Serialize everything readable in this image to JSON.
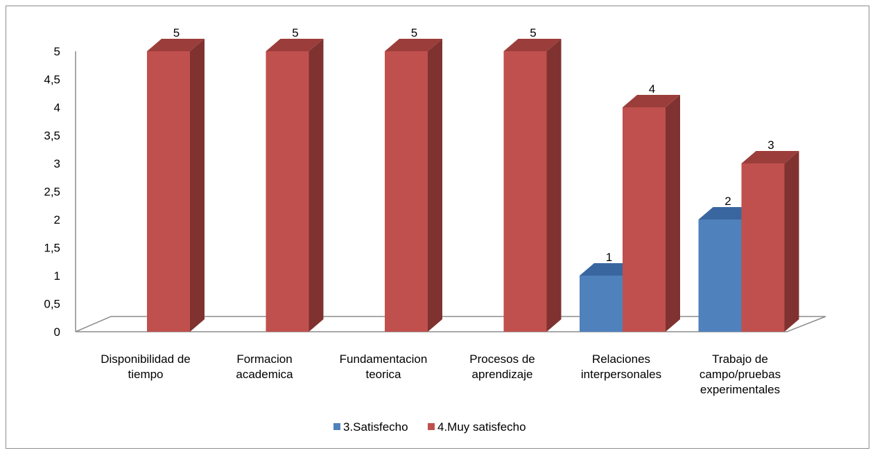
{
  "chart_data": {
    "type": "bar",
    "subtype": "3d-clustered-column",
    "title": "",
    "xlabel": "",
    "ylabel": "",
    "ylim": [
      0,
      5
    ],
    "y_ticks": [
      "0",
      "0,5",
      "1",
      "1,5",
      "2",
      "2,5",
      "3",
      "3,5",
      "4",
      "4,5",
      "5"
    ],
    "y_tick_values": [
      0,
      0.5,
      1,
      1.5,
      2,
      2.5,
      3,
      3.5,
      4,
      4.5,
      5
    ],
    "categories": [
      [
        "Disponibilidad de",
        "tiempo"
      ],
      [
        "Formacion",
        "academica"
      ],
      [
        "Fundamentacion",
        "teorica"
      ],
      [
        "Procesos de",
        "aprendizaje"
      ],
      [
        "Relaciones",
        "interpersonales"
      ],
      [
        "Trabajo de",
        "campo/pruebas",
        "experimentales"
      ]
    ],
    "series": [
      {
        "name": "3.Satisfecho",
        "values": [
          null,
          null,
          null,
          null,
          1,
          2
        ],
        "color": "#4F81BD",
        "side": "#385D8A",
        "top": "#3A66A0"
      },
      {
        "name": "4.Muy satisfecho",
        "values": [
          5,
          5,
          5,
          5,
          4,
          3
        ],
        "color": "#C0504D",
        "side": "#7F3230",
        "top": "#9B3E3B"
      }
    ],
    "grid": false,
    "legend_position": "bottom"
  }
}
